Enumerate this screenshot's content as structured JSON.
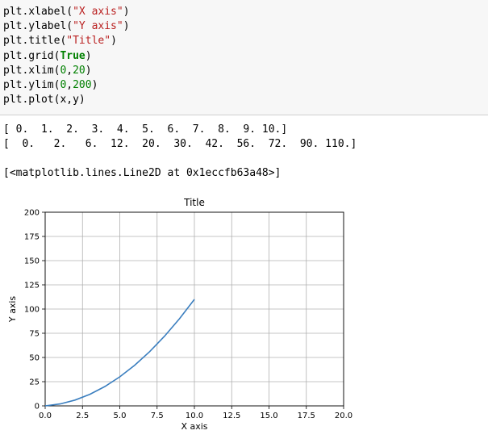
{
  "code": {
    "lines": [
      {
        "parts": [
          {
            "t": "plt.xlabel(",
            "c": "plain"
          },
          {
            "t": "\"X axis\"",
            "c": "str"
          },
          {
            "t": ")",
            "c": "plain"
          }
        ]
      },
      {
        "parts": [
          {
            "t": "plt.ylabel(",
            "c": "plain"
          },
          {
            "t": "\"Y axis\"",
            "c": "str"
          },
          {
            "t": ")",
            "c": "plain"
          }
        ]
      },
      {
        "parts": [
          {
            "t": "plt.title(",
            "c": "plain"
          },
          {
            "t": "\"Title\"",
            "c": "str"
          },
          {
            "t": ")",
            "c": "plain"
          }
        ]
      },
      {
        "parts": [
          {
            "t": "plt.grid(",
            "c": "plain"
          },
          {
            "t": "True",
            "c": "kw"
          },
          {
            "t": ")",
            "c": "plain"
          }
        ]
      },
      {
        "parts": [
          {
            "t": "plt.xlim(",
            "c": "plain"
          },
          {
            "t": "0",
            "c": "num"
          },
          {
            "t": ",",
            "c": "plain"
          },
          {
            "t": "20",
            "c": "num"
          },
          {
            "t": ")",
            "c": "plain"
          }
        ]
      },
      {
        "parts": [
          {
            "t": "plt.ylim(",
            "c": "plain"
          },
          {
            "t": "0",
            "c": "num"
          },
          {
            "t": ",",
            "c": "plain"
          },
          {
            "t": "200",
            "c": "num"
          },
          {
            "t": ")",
            "c": "plain"
          }
        ]
      },
      {
        "parts": [
          {
            "t": "plt.plot(x,y)",
            "c": "plain"
          }
        ]
      }
    ]
  },
  "output": {
    "array_x": "[ 0.  1.  2.  3.  4.  5.  6.  7.  8.  9. 10.]",
    "array_y": "[  0.   2.   6.  12.  20.  30.  42.  56.  72.  90. 110.]",
    "repr": "[<matplotlib.lines.Line2D at 0x1eccfb63a48>]"
  },
  "colors": {
    "line": "#3a7ebf",
    "grid": "#b0b0b0",
    "string": "#ba2121",
    "number": "#008000"
  },
  "chart_data": {
    "type": "line",
    "title": "Title",
    "xlabel": "X axis",
    "ylabel": "Y axis",
    "xlim": [
      0,
      20
    ],
    "ylim": [
      0,
      200
    ],
    "grid": true,
    "xticks": [
      0.0,
      2.5,
      5.0,
      7.5,
      10.0,
      12.5,
      15.0,
      17.5,
      20.0
    ],
    "xtick_labels": [
      "0.0",
      "2.5",
      "5.0",
      "7.5",
      "10.0",
      "12.5",
      "15.0",
      "17.5",
      "20.0"
    ],
    "yticks": [
      0,
      25,
      50,
      75,
      100,
      125,
      150,
      175,
      200
    ],
    "ytick_labels": [
      "0",
      "25",
      "50",
      "75",
      "100",
      "125",
      "150",
      "175",
      "200"
    ],
    "series": [
      {
        "x": [
          0,
          1,
          2,
          3,
          4,
          5,
          6,
          7,
          8,
          9,
          10
        ],
        "values": [
          0,
          2,
          6,
          12,
          20,
          30,
          42,
          56,
          72,
          90,
          110
        ]
      }
    ]
  }
}
